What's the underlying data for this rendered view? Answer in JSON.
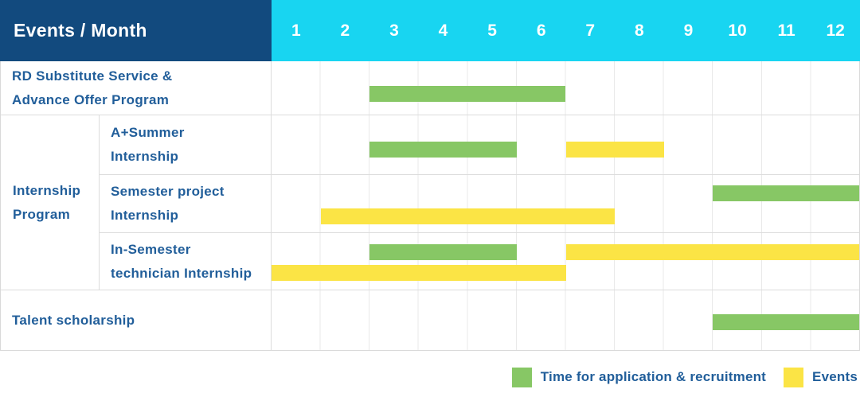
{
  "header": {
    "title": "Events / Month",
    "months": [
      "1",
      "2",
      "3",
      "4",
      "5",
      "6",
      "7",
      "8",
      "9",
      "10",
      "11",
      "12"
    ]
  },
  "colors": {
    "header_bg": "#124a7e",
    "months_bg": "#18d5f1",
    "label_text": "#215e9a",
    "grid_line": "#e9e9e9",
    "row_border": "#dcdcdc"
  },
  "chart_data": {
    "type": "gantt",
    "title": "Events / Month",
    "xlabel": "Month",
    "x_ticks": [
      1,
      2,
      3,
      4,
      5,
      6,
      7,
      8,
      9,
      10,
      11,
      12
    ],
    "x_range": [
      1,
      12
    ],
    "grid": true,
    "legend_position": "bottom-right",
    "legend": [
      {
        "series": "application",
        "label": "Time for application & recruitment",
        "color": "#87c765"
      },
      {
        "series": "events",
        "label": "Events",
        "color": "#fbe445"
      }
    ],
    "groups": [
      {
        "label_lines": [
          "Internship",
          "Program"
        ],
        "row_ids": [
          "a-summer",
          "semester-project",
          "in-semester"
        ]
      }
    ],
    "rows": [
      {
        "id": "rd-substitute",
        "label_lines": [
          "RD Substitute Service &",
          "Advance Offer Program"
        ],
        "bars": [
          {
            "series": "application",
            "start_month": 3,
            "end_month": 6,
            "lane": "center"
          }
        ]
      },
      {
        "id": "a-summer",
        "label_lines": [
          "A+Summer",
          "Internship"
        ],
        "bars": [
          {
            "series": "application",
            "start_month": 3,
            "end_month": 5,
            "lane": "center"
          },
          {
            "series": "events",
            "start_month": 7,
            "end_month": 8,
            "lane": "center"
          }
        ]
      },
      {
        "id": "semester-project",
        "label_lines": [
          "Semester project",
          "Internship"
        ],
        "bars": [
          {
            "series": "application",
            "start_month": 10,
            "end_month": 12,
            "lane": "top"
          },
          {
            "series": "events",
            "start_month": 2,
            "end_month": 7,
            "lane": "bottom"
          }
        ]
      },
      {
        "id": "in-semester",
        "label_lines": [
          "In-Semester",
          "technician Internship"
        ],
        "bars": [
          {
            "series": "application",
            "start_month": 3,
            "end_month": 5,
            "lane": "top"
          },
          {
            "series": "events",
            "start_month": 7,
            "end_month": 12,
            "lane": "top"
          },
          {
            "series": "events",
            "start_month": 1,
            "end_month": 6,
            "lane": "bottom"
          }
        ]
      },
      {
        "id": "talent-scholarship",
        "label_lines": [
          "Talent scholarship"
        ],
        "bars": [
          {
            "series": "application",
            "start_month": 10,
            "end_month": 12,
            "lane": "center"
          }
        ]
      }
    ]
  }
}
